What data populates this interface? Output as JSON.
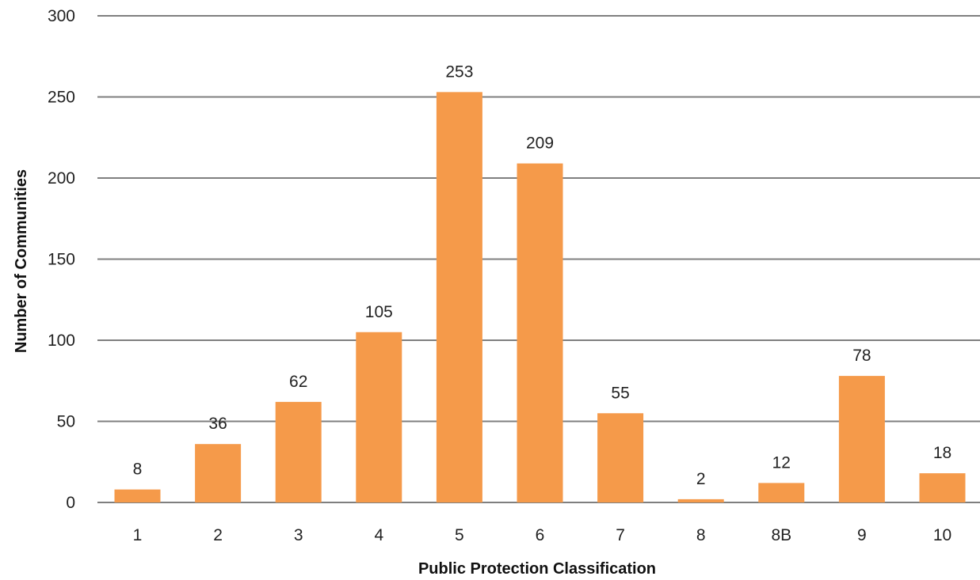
{
  "chart_data": {
    "type": "bar",
    "title": "",
    "xlabel": "Public Protection Classification",
    "ylabel": "Number of Communities",
    "categories": [
      "1",
      "2",
      "3",
      "4",
      "5",
      "6",
      "7",
      "8",
      "8B",
      "9",
      "10"
    ],
    "values": [
      8,
      36,
      62,
      105,
      253,
      209,
      55,
      2,
      12,
      78,
      18
    ],
    "ylim": [
      0,
      300
    ],
    "yticks": [
      "0",
      "50",
      "100",
      "150",
      "200",
      "250",
      "300"
    ],
    "grid": true,
    "legend": "none",
    "bar_color": "#F59A4A",
    "data_labels": true
  }
}
